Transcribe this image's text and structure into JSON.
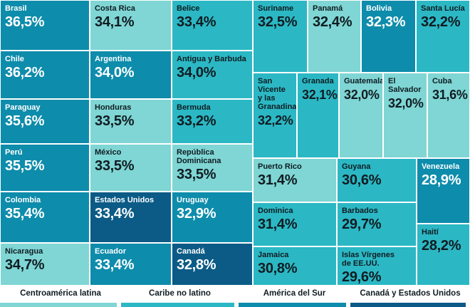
{
  "chart_data": {
    "type": "treemap",
    "unit": "%",
    "groups": [
      {
        "name": "Centroamérica latina",
        "color": "#7fd6d4"
      },
      {
        "name": "Caribe no latino",
        "color": "#2bb8c4"
      },
      {
        "name": "América del Sur",
        "color": "#0e8cab"
      },
      {
        "name": "Canadá y Estados Unidos",
        "color": "#0b5b86"
      }
    ],
    "cells": [
      {
        "name": "Brasil",
        "value": 36.5,
        "value_label": "36,5%",
        "group": "América del Sur",
        "color": "#0e8cab"
      },
      {
        "name": "Chile",
        "value": 36.2,
        "value_label": "36,2%",
        "group": "América del Sur",
        "color": "#0e8cab"
      },
      {
        "name": "Paraguay",
        "value": 35.6,
        "value_label": "35,6%",
        "group": "América del Sur",
        "color": "#0e8cab"
      },
      {
        "name": "Perú",
        "value": 35.5,
        "value_label": "35,5%",
        "group": "América del Sur",
        "color": "#0e8cab"
      },
      {
        "name": "Colombia",
        "value": 35.4,
        "value_label": "35,4%",
        "group": "América del Sur",
        "color": "#0e8cab"
      },
      {
        "name": "Nicaragua",
        "value": 34.7,
        "value_label": "34,7%",
        "group": "Centroamérica latina",
        "color": "#7fd6d4"
      },
      {
        "name": "Costa Rica",
        "value": 34.1,
        "value_label": "34,1%",
        "group": "Centroamérica latina",
        "color": "#7fd6d4"
      },
      {
        "name": "Argentina",
        "value": 34.0,
        "value_label": "34,0%",
        "group": "América del Sur",
        "color": "#0e8cab"
      },
      {
        "name": "Honduras",
        "value": 33.5,
        "value_label": "33,5%",
        "group": "Centroamérica latina",
        "color": "#7fd6d4"
      },
      {
        "name": "México",
        "value": 33.5,
        "value_label": "33,5%",
        "group": "Centroamérica latina",
        "color": "#7fd6d4"
      },
      {
        "name": "Estados Unidos",
        "value": 33.4,
        "value_label": "33,4%",
        "group": "Canadá y Estados Unidos",
        "color": "#0b5b86"
      },
      {
        "name": "Ecuador",
        "value": 33.4,
        "value_label": "33,4%",
        "group": "América del Sur",
        "color": "#0e8cab"
      },
      {
        "name": "Belice",
        "value": 33.4,
        "value_label": "33,4%",
        "group": "Caribe no latino",
        "color": "#2bb8c4"
      },
      {
        "name": "Antigua y Barbuda",
        "value": 34.0,
        "value_label": "34,0%",
        "group": "Caribe no latino",
        "color": "#2bb8c4"
      },
      {
        "name": "Bermuda",
        "value": 33.2,
        "value_label": "33,2%",
        "group": "Caribe no latino",
        "color": "#2bb8c4"
      },
      {
        "name": "República\nDominicana",
        "value": 33.5,
        "value_label": "33,5%",
        "group": "Centroamérica latina",
        "color": "#7fd6d4"
      },
      {
        "name": "Uruguay",
        "value": 32.9,
        "value_label": "32,9%",
        "group": "América del Sur",
        "color": "#0e8cab"
      },
      {
        "name": "Canadá",
        "value": 32.8,
        "value_label": "32,8%",
        "group": "Canadá y Estados Unidos",
        "color": "#0b5b86"
      },
      {
        "name": "Suriname",
        "value": 32.5,
        "value_label": "32,5%",
        "group": "Caribe no latino",
        "color": "#2bb8c4"
      },
      {
        "name": "Panamá",
        "value": 32.4,
        "value_label": "32,4%",
        "group": "Centroamérica latina",
        "color": "#7fd6d4"
      },
      {
        "name": "Bolivia",
        "value": 32.3,
        "value_label": "32,3%",
        "group": "América del Sur",
        "color": "#0e8cab"
      },
      {
        "name": "Santa Lucía",
        "value": 32.2,
        "value_label": "32,2%",
        "group": "Caribe no latino",
        "color": "#2bb8c4"
      },
      {
        "name": "San Vicente\ny las\nGranadinas",
        "value": 32.2,
        "value_label": "32,2%",
        "group": "Caribe no latino",
        "color": "#2bb8c4"
      },
      {
        "name": "Granada",
        "value": 32.1,
        "value_label": "32,1%",
        "group": "Caribe no latino",
        "color": "#2bb8c4"
      },
      {
        "name": "Guatemala",
        "value": 32.0,
        "value_label": "32,0%",
        "group": "Centroamérica latina",
        "color": "#7fd6d4"
      },
      {
        "name": "El Salvador",
        "value": 32.0,
        "value_label": "32,0%",
        "group": "Centroamérica latina",
        "color": "#7fd6d4"
      },
      {
        "name": "Cuba",
        "value": 31.6,
        "value_label": "31,6%",
        "group": "Centroamérica latina",
        "color": "#7fd6d4"
      },
      {
        "name": "Puerto Rico",
        "value": 31.4,
        "value_label": "31,4%",
        "group": "Centroamérica latina",
        "color": "#7fd6d4"
      },
      {
        "name": "Dominica",
        "value": 31.4,
        "value_label": "31,4%",
        "group": "Caribe no latino",
        "color": "#2bb8c4"
      },
      {
        "name": "Jamaica",
        "value": 30.8,
        "value_label": "30,8%",
        "group": "Caribe no latino",
        "color": "#2bb8c4"
      },
      {
        "name": "Guyana",
        "value": 30.6,
        "value_label": "30,6%",
        "group": "Caribe no latino",
        "color": "#2bb8c4"
      },
      {
        "name": "Barbados",
        "value": 29.7,
        "value_label": "29,7%",
        "group": "Caribe no latino",
        "color": "#2bb8c4"
      },
      {
        "name": "Islas Vírgenes\nde EE.UU.",
        "value": 29.6,
        "value_label": "29,6%",
        "group": "Caribe no latino",
        "color": "#2bb8c4"
      },
      {
        "name": "Venezuela",
        "value": 28.9,
        "value_label": "28,9%",
        "group": "América del Sur",
        "color": "#0e8cab"
      },
      {
        "name": "Haití",
        "value": 28.2,
        "value_label": "28,2%",
        "group": "Caribe no latino",
        "color": "#2bb8c4"
      }
    ]
  }
}
